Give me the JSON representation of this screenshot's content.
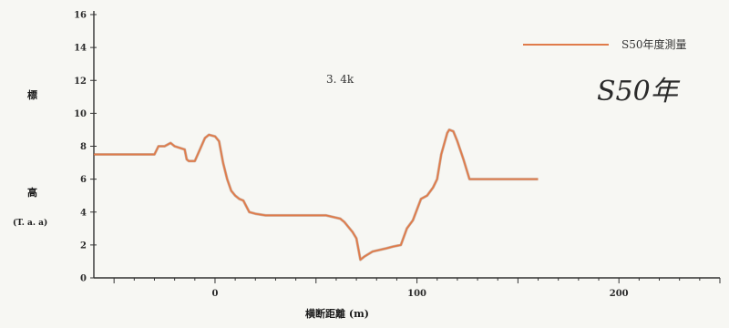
{
  "chart_data": {
    "type": "line",
    "xlabel": "横断距離 (m)",
    "ylabel_top": "標",
    "ylabel_mid": "高",
    "ylabel_unit": "(T. a. a)",
    "annotation": "3. 4k",
    "handwritten": "S50年",
    "xlim": [
      -60,
      250
    ],
    "ylim": [
      0,
      16
    ],
    "x_ticks": [
      0,
      100,
      200
    ],
    "y_ticks": [
      0,
      2,
      4,
      6,
      8,
      10,
      12,
      14,
      16
    ],
    "grid": false,
    "legend_position": "top-right",
    "series": [
      {
        "name": "S50年度測量",
        "color": "#e07b4a",
        "x": [
          -60,
          -30,
          -28,
          -25,
          -22,
          -20,
          -15,
          -14,
          -13,
          -10,
          -5,
          -3,
          0,
          2,
          4,
          6,
          8,
          10,
          12,
          14,
          17,
          20,
          25,
          35,
          45,
          55,
          62,
          64,
          68,
          70,
          72,
          74,
          78,
          85,
          88,
          92,
          95,
          98,
          102,
          105,
          108,
          110,
          112,
          115,
          116,
          118,
          120,
          123,
          126,
          130,
          160
        ],
        "y": [
          7.5,
          7.5,
          8.0,
          8.0,
          8.2,
          8.0,
          7.8,
          7.2,
          7.1,
          7.1,
          8.5,
          8.7,
          8.6,
          8.3,
          7.0,
          6.0,
          5.3,
          5.0,
          4.8,
          4.7,
          4.0,
          3.9,
          3.8,
          3.8,
          3.8,
          3.8,
          3.6,
          3.4,
          2.8,
          2.4,
          1.1,
          1.3,
          1.6,
          1.8,
          1.9,
          2.0,
          3.0,
          3.5,
          4.8,
          5.0,
          5.5,
          6.0,
          7.5,
          8.8,
          9.0,
          8.9,
          8.3,
          7.2,
          6.0,
          6.0,
          6.0
        ]
      }
    ]
  }
}
